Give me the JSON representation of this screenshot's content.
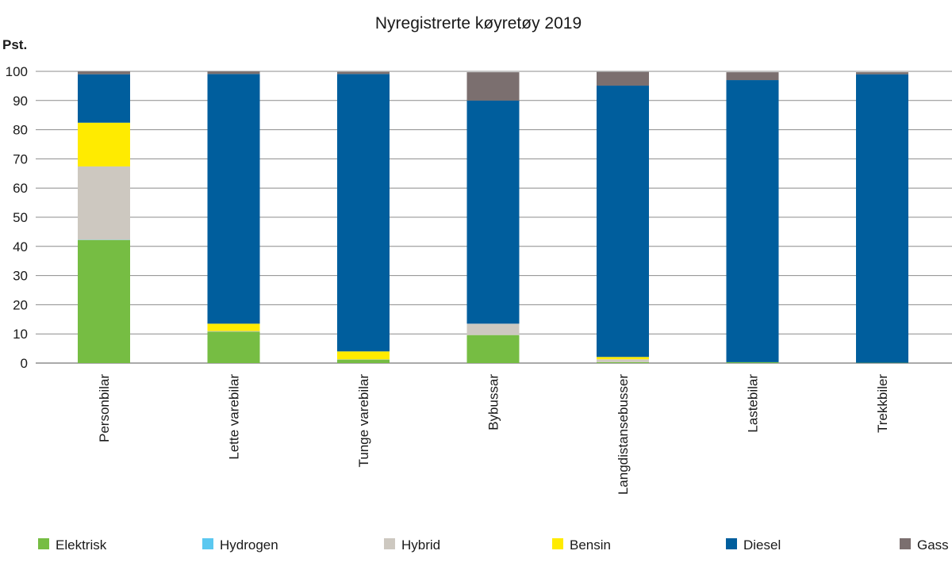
{
  "chart_data": {
    "type": "bar",
    "stacked": true,
    "title": "Nyregistrerte køyretøy 2019",
    "ylabel": "Pst.",
    "xlabel": "",
    "ylim": [
      0,
      100
    ],
    "yticks": [
      0,
      10,
      20,
      30,
      40,
      50,
      60,
      70,
      80,
      90,
      100
    ],
    "grid": true,
    "legend_position": "bottom",
    "categories": [
      "Personbilar",
      "Lette varebilar",
      "Tunge varebilar",
      "Bybussar",
      "Langdistansebusser",
      "Lastebilar",
      "Trekkbiler"
    ],
    "series": [
      {
        "name": "Elektrisk",
        "color": "#76bd43",
        "values": [
          42.2,
          10.8,
          1.2,
          9.6,
          0.3,
          0.3,
          0.1
        ]
      },
      {
        "name": "Hydrogen",
        "color": "#5bc8f0",
        "values": [
          0.1,
          0.0,
          0.0,
          0.0,
          0.0,
          0.0,
          0.0
        ]
      },
      {
        "name": "Hybrid",
        "color": "#cdc8c0",
        "values": [
          25.1,
          0.2,
          0.1,
          3.9,
          1.0,
          0.0,
          0.0
        ]
      },
      {
        "name": "Bensin",
        "color": "#ffeb00",
        "values": [
          15.0,
          2.5,
          2.7,
          0.0,
          0.8,
          0.0,
          0.0
        ]
      },
      {
        "name": "Diesel",
        "color": "#005e9d",
        "values": [
          16.6,
          85.6,
          95.1,
          76.5,
          93.0,
          96.7,
          98.9
        ]
      },
      {
        "name": "Gass",
        "color": "#7b6f6f",
        "values": [
          0.9,
          0.8,
          0.7,
          9.7,
          4.7,
          2.7,
          0.7
        ]
      }
    ]
  }
}
